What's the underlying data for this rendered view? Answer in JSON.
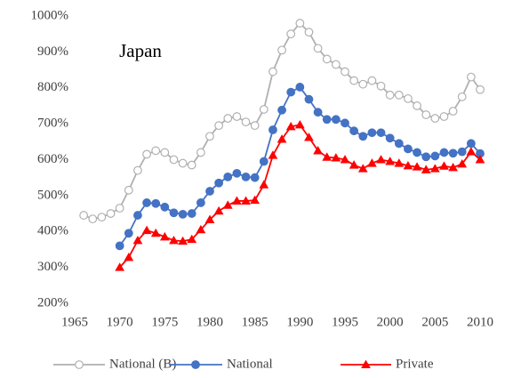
{
  "chart_data": {
    "type": "line",
    "annotation": "Japan",
    "x": [
      1966,
      1967,
      1968,
      1969,
      1970,
      1971,
      1972,
      1973,
      1974,
      1975,
      1976,
      1977,
      1978,
      1979,
      1980,
      1981,
      1982,
      1983,
      1984,
      1985,
      1986,
      1987,
      1988,
      1989,
      1990,
      1991,
      1992,
      1993,
      1994,
      1995,
      1996,
      1997,
      1998,
      1999,
      2000,
      2001,
      2002,
      2003,
      2004,
      2005,
      2006,
      2007,
      2008,
      2009,
      2010
    ],
    "series": [
      {
        "name": "National (B)",
        "color": "#b0b0b0",
        "marker": "open-circle",
        "values": [
          445,
          435,
          440,
          450,
          465,
          515,
          570,
          615,
          625,
          620,
          600,
          590,
          585,
          620,
          665,
          695,
          715,
          720,
          705,
          695,
          740,
          845,
          905,
          950,
          980,
          955,
          910,
          880,
          865,
          845,
          820,
          810,
          820,
          805,
          780,
          780,
          770,
          750,
          725,
          715,
          720,
          735,
          775,
          830,
          795
        ]
      },
      {
        "name": "National",
        "color": "#4472c4",
        "marker": "circle",
        "values": [
          null,
          null,
          null,
          null,
          360,
          395,
          445,
          480,
          478,
          468,
          452,
          448,
          450,
          480,
          512,
          535,
          552,
          562,
          552,
          550,
          595,
          683,
          738,
          788,
          802,
          768,
          732,
          712,
          712,
          702,
          680,
          665,
          675,
          675,
          660,
          645,
          630,
          620,
          608,
          610,
          620,
          618,
          622,
          645,
          617
        ]
      },
      {
        "name": "Private",
        "color": "#ff0000",
        "marker": "triangle",
        "values": [
          null,
          null,
          null,
          null,
          300,
          328,
          375,
          403,
          395,
          385,
          375,
          373,
          378,
          405,
          433,
          457,
          473,
          485,
          485,
          487,
          530,
          612,
          657,
          692,
          697,
          662,
          625,
          607,
          605,
          600,
          585,
          575,
          590,
          600,
          595,
          590,
          583,
          580,
          572,
          575,
          582,
          578,
          588,
          622,
          600
        ]
      }
    ],
    "xlim": [
      1965,
      2010
    ],
    "xticks": [
      1965,
      1970,
      1975,
      1980,
      1985,
      1990,
      1995,
      2000,
      2005,
      2010
    ],
    "ylim": [
      200,
      1000
    ],
    "yticks": [
      {
        "value": 200,
        "label": "200%"
      },
      {
        "value": 300,
        "label": "300%"
      },
      {
        "value": 400,
        "label": "400%"
      },
      {
        "value": 500,
        "label": "500%"
      },
      {
        "value": 600,
        "label": "600%"
      },
      {
        "value": 700,
        "label": "700%"
      },
      {
        "value": 800,
        "label": "800%"
      },
      {
        "value": 900,
        "label": "900%"
      },
      {
        "value": 1000,
        "label": "1000%"
      }
    ],
    "grid": false,
    "legend": "bottom"
  }
}
